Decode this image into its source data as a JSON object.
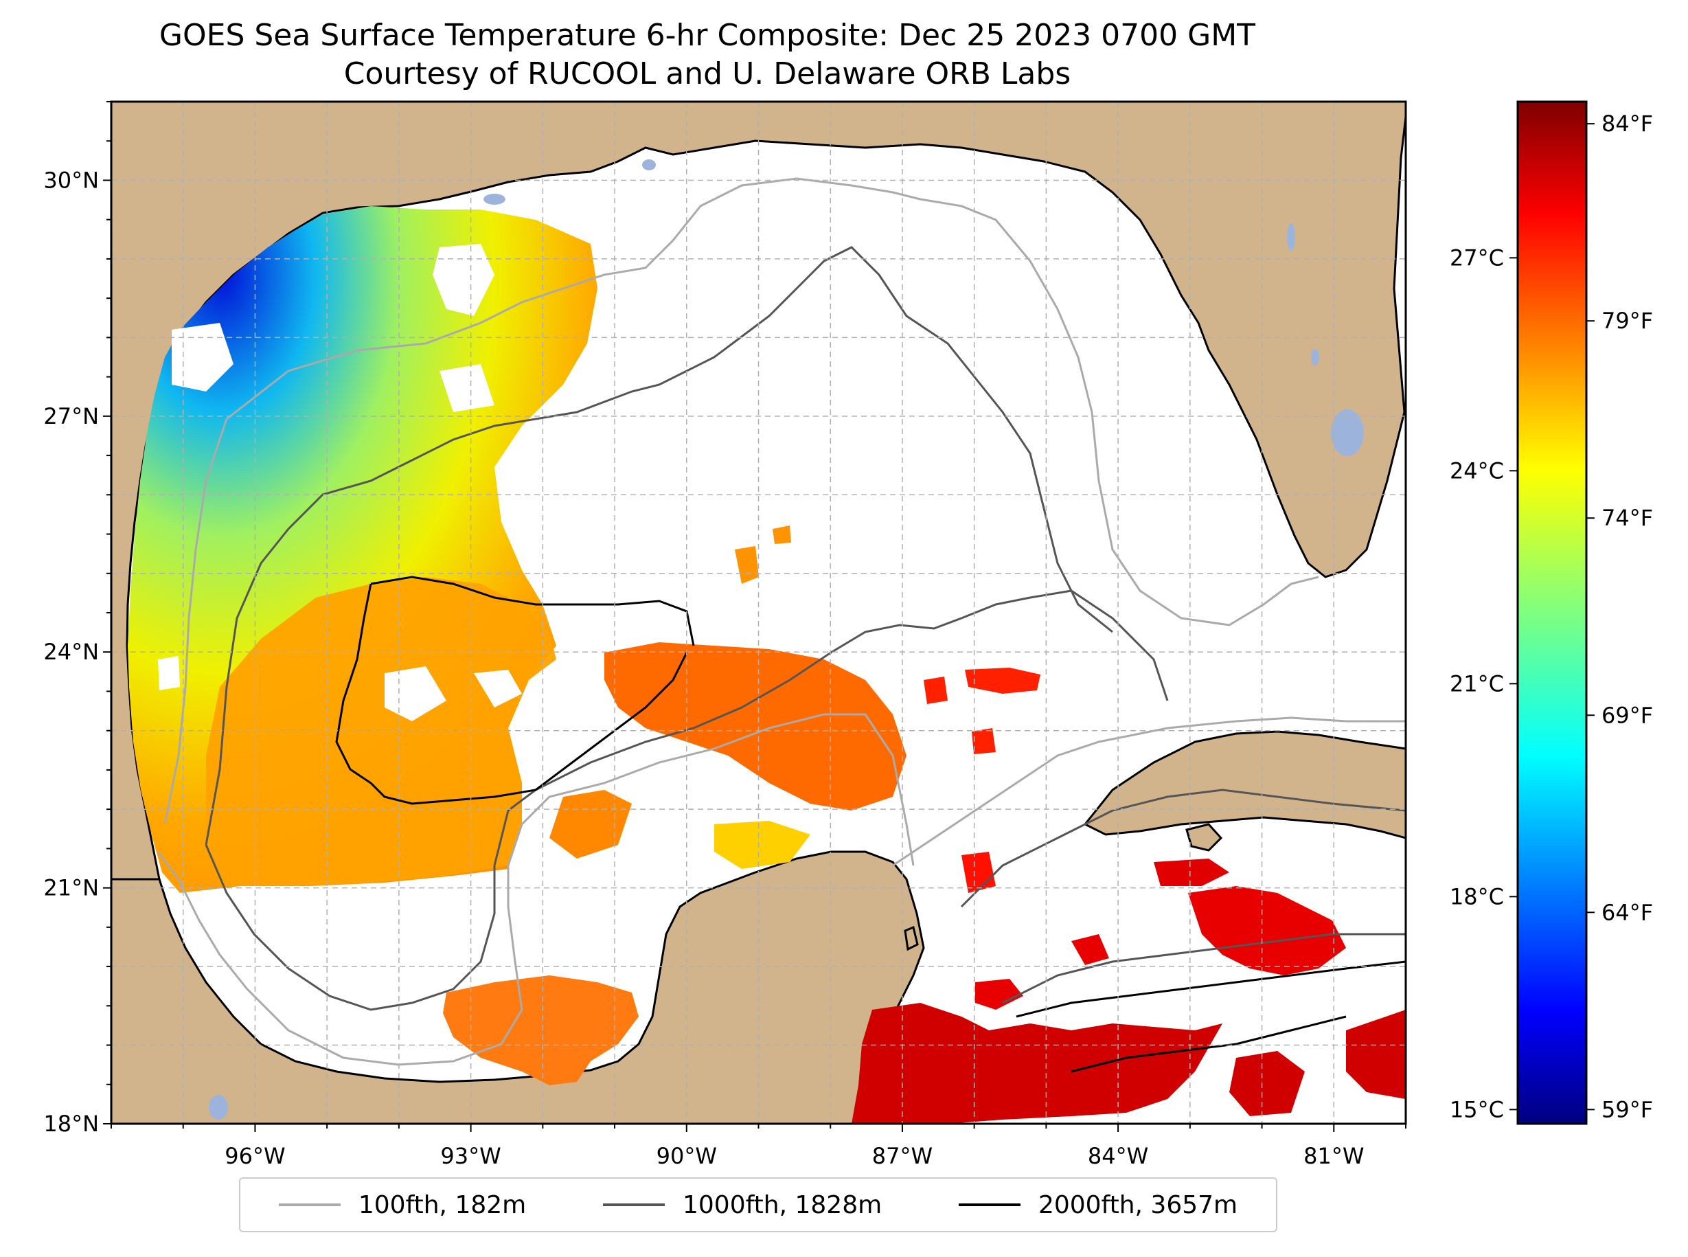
{
  "title": {
    "line1": "GOES Sea Surface Temperature 6-hr Composite: Dec 25 2023 0700 GMT",
    "line2": "Courtesy of RUCOOL and U. Delaware ORB Labs"
  },
  "map": {
    "lon_ticks": [
      "96°W",
      "93°W",
      "90°W",
      "87°W",
      "84°W",
      "81°W"
    ],
    "lat_ticks": [
      "30°N",
      "27°N",
      "24°N",
      "21°N",
      "18°N"
    ],
    "extent": {
      "lon_min": -98,
      "lon_max": -80,
      "lat_min": 18,
      "lat_max": 31
    },
    "land_color": "#d2b48c",
    "lake_color": "#9cb4dc"
  },
  "colorbar": {
    "celsius_ticks": [
      "27°C",
      "24°C",
      "21°C",
      "18°C",
      "15°C"
    ],
    "fahrenheit_ticks": [
      "84°F",
      "79°F",
      "74°F",
      "69°F",
      "64°F",
      "59°F"
    ],
    "colormap": "jet"
  },
  "legend": [
    {
      "label": "100fth, 182m",
      "color": "#aaaaaa"
    },
    {
      "label": "1000fth, 1828m",
      "color": "#555555"
    },
    {
      "label": "2000fth, 3657m",
      "color": "#000000"
    }
  ]
}
